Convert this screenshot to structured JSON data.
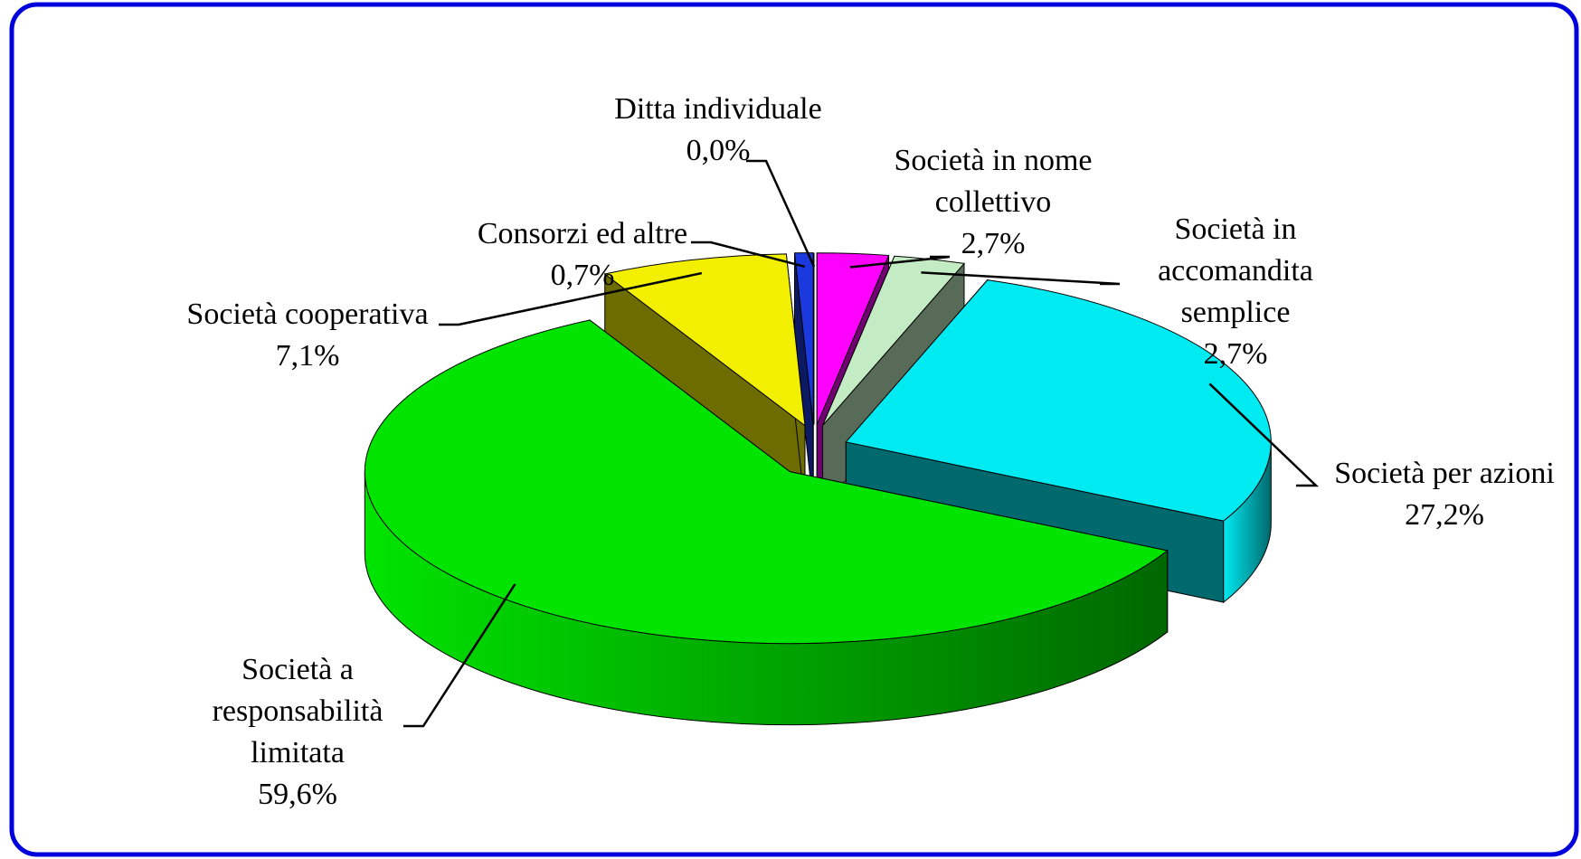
{
  "chart_data": {
    "type": "pie",
    "categories": [
      "Ditta individuale",
      "Società in nome collettivo",
      "Società in accomandita semplice",
      "Società per azioni",
      "Società a responsabilità limitata",
      "Società cooperativa",
      "Consorzi ed altre"
    ],
    "values": [
      0.0,
      2.7,
      2.7,
      27.2,
      59.6,
      7.1,
      0.7
    ],
    "value_labels": [
      "0,0%",
      "2,7%",
      "2,7%",
      "27,2%",
      "59,6%",
      "7,1%",
      "0,7%"
    ],
    "colors": [
      "#1a3adf",
      "#ff00ff",
      "#c4ecc4",
      "#00eaf2",
      "#00e400",
      "#f2f000",
      "#1a3adf"
    ]
  }
}
